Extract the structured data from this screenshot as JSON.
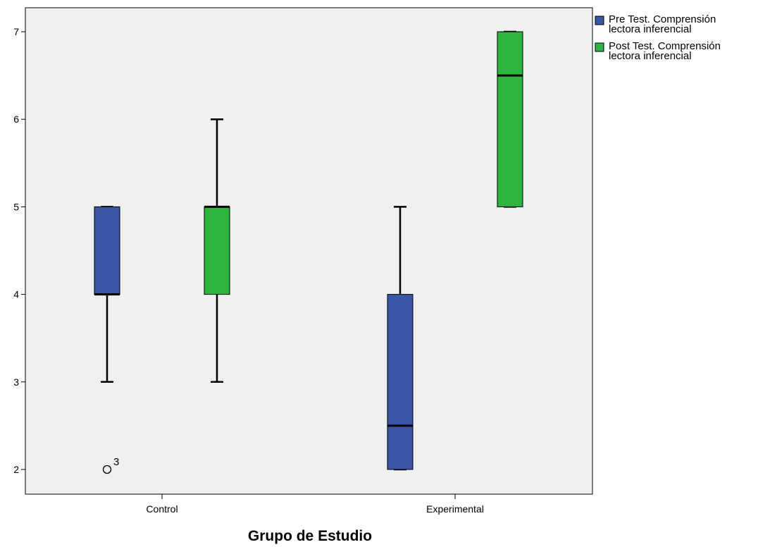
{
  "chart_data": {
    "type": "boxplot",
    "xlabel": "Grupo de Estudio",
    "ylabel": "",
    "ylim": [
      1.7,
      7.3
    ],
    "yticks": [
      2,
      3,
      4,
      5,
      6,
      7
    ],
    "grid": false,
    "legend_position": "top-right, outside plot",
    "categories": [
      "Control",
      "Experimental"
    ],
    "series": [
      {
        "name": "Pre Test. Comprensión lectora inferencial",
        "legend_lines": [
          "Pre Test. Comprensión",
          "lectora inferencial"
        ],
        "color": "#3a55a6",
        "boxes": [
          {
            "category": "Control",
            "whisker_low": 3,
            "q1": 4,
            "median": 4,
            "q3": 5,
            "whisker_high": 5,
            "outliers": [
              {
                "value": 2,
                "label": "3"
              }
            ]
          },
          {
            "category": "Experimental",
            "whisker_low": 2,
            "q1": 2,
            "median": 2.5,
            "q3": 4,
            "whisker_high": 5,
            "outliers": []
          }
        ]
      },
      {
        "name": "Post Test. Comprensión lectora inferencial",
        "legend_lines": [
          "Post Test. Comprensión",
          "lectora inferencial"
        ],
        "color": "#2db540",
        "boxes": [
          {
            "category": "Control",
            "whisker_low": 3,
            "q1": 4,
            "median": 5,
            "q3": 5,
            "whisker_high": 6,
            "outliers": []
          },
          {
            "category": "Experimental",
            "whisker_low": 5,
            "q1": 5,
            "median": 6.5,
            "q3": 7,
            "whisker_high": 7,
            "outliers": []
          }
        ]
      }
    ]
  }
}
